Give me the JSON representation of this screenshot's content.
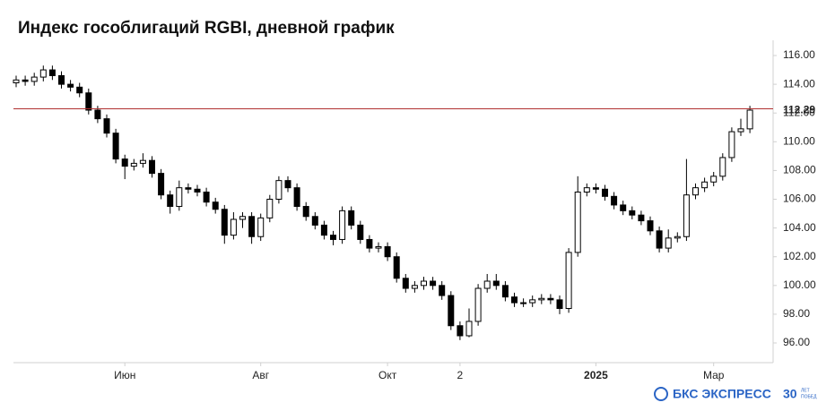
{
  "chart_data": {
    "type": "candlestick",
    "title": "Индекс гособлигаций RGBI, дневной график",
    "categories": [
      null,
      null,
      null,
      null,
      null,
      null,
      null,
      null,
      null,
      null,
      null,
      null,
      "Июн",
      null,
      null,
      null,
      null,
      null,
      null,
      null,
      null,
      null,
      null,
      null,
      null,
      null,
      null,
      "Авг",
      null,
      null,
      null,
      null,
      null,
      null,
      null,
      null,
      null,
      null,
      null,
      null,
      null,
      "Окт",
      null,
      null,
      null,
      null,
      null,
      null,
      null,
      "2",
      null,
      null,
      null,
      null,
      null,
      null,
      null,
      null,
      null,
      null,
      null,
      null,
      null,
      null,
      "2025",
      null,
      null,
      null,
      null,
      null,
      null,
      null,
      null,
      null,
      null,
      null,
      null,
      "Мар",
      null,
      null,
      null,
      null
    ],
    "open": [
      114.1,
      114.3,
      114.2,
      114.5,
      115.0,
      114.6,
      114.0,
      113.8,
      113.4,
      112.2,
      111.6,
      110.6,
      108.8,
      108.3,
      108.5,
      108.7,
      107.8,
      106.3,
      105.5,
      106.8,
      106.7,
      106.5,
      105.8,
      105.3,
      103.5,
      104.6,
      104.8,
      103.4,
      104.7,
      106.0,
      107.3,
      106.8,
      105.5,
      104.8,
      104.2,
      103.5,
      103.2,
      105.2,
      104.2,
      103.2,
      102.6,
      102.7,
      102.0,
      100.5,
      99.8,
      100.0,
      100.3,
      100.0,
      99.3,
      97.2,
      96.5,
      97.5,
      99.8,
      100.3,
      100.0,
      99.2,
      98.8,
      98.8,
      99.0,
      99.1,
      99.0,
      98.4,
      102.3,
      106.5,
      106.8,
      106.7,
      106.2,
      105.6,
      105.2,
      104.9,
      104.5,
      103.8,
      102.6,
      103.3,
      103.4,
      106.3,
      106.8,
      107.2,
      107.6,
      108.9,
      110.7,
      110.9
    ],
    "high": [
      114.6,
      114.6,
      114.8,
      115.3,
      115.3,
      114.9,
      114.3,
      114.1,
      113.7,
      112.5,
      111.9,
      110.9,
      109.1,
      108.8,
      109.2,
      109.0,
      108.1,
      106.6,
      107.3,
      107.1,
      107.0,
      106.8,
      106.1,
      105.6,
      105.1,
      105.1,
      105.1,
      105.0,
      106.3,
      107.6,
      107.6,
      107.1,
      105.8,
      105.1,
      104.5,
      103.8,
      105.5,
      105.5,
      104.5,
      103.5,
      103.0,
      103.0,
      102.3,
      100.8,
      100.3,
      100.6,
      100.6,
      100.3,
      99.6,
      97.5,
      98.4,
      100.1,
      100.8,
      100.8,
      100.3,
      99.5,
      99.1,
      99.3,
      99.4,
      99.4,
      99.3,
      102.6,
      107.6,
      107.1,
      107.1,
      107.0,
      106.5,
      105.9,
      105.5,
      105.2,
      104.8,
      104.1,
      103.9,
      103.7,
      108.8,
      107.1,
      107.5,
      107.9,
      109.2,
      111.0,
      111.6,
      112.5
    ],
    "low": [
      113.8,
      113.9,
      113.9,
      114.2,
      114.3,
      113.7,
      113.5,
      113.1,
      111.9,
      111.3,
      110.3,
      108.5,
      107.4,
      108.0,
      108.2,
      107.5,
      106.0,
      105.0,
      105.2,
      106.4,
      106.2,
      105.5,
      105.0,
      102.9,
      103.2,
      104.0,
      102.9,
      103.1,
      104.4,
      105.7,
      106.5,
      105.2,
      104.5,
      103.9,
      103.2,
      102.8,
      102.9,
      103.9,
      102.9,
      102.3,
      102.3,
      101.7,
      100.2,
      99.5,
      99.5,
      99.7,
      99.7,
      99.0,
      96.9,
      96.2,
      96.4,
      97.2,
      99.5,
      99.7,
      98.9,
      98.5,
      98.5,
      98.5,
      98.7,
      98.7,
      98.0,
      98.1,
      102.0,
      106.2,
      106.4,
      105.9,
      105.3,
      104.9,
      104.6,
      104.2,
      103.5,
      102.3,
      102.3,
      103.0,
      103.1,
      106.0,
      106.5,
      106.9,
      107.3,
      108.6,
      110.4,
      110.6
    ],
    "close": [
      114.3,
      114.2,
      114.5,
      115.0,
      114.6,
      114.0,
      113.8,
      113.4,
      112.2,
      111.6,
      110.6,
      108.8,
      108.3,
      108.5,
      108.7,
      107.8,
      106.3,
      105.5,
      106.8,
      106.7,
      106.5,
      105.8,
      105.3,
      103.5,
      104.6,
      104.8,
      103.4,
      104.7,
      106.0,
      107.3,
      106.8,
      105.5,
      104.8,
      104.2,
      103.5,
      103.2,
      105.2,
      104.2,
      103.2,
      102.6,
      102.7,
      102.0,
      100.5,
      99.8,
      100.0,
      100.3,
      100.0,
      99.3,
      97.2,
      96.5,
      97.5,
      99.8,
      100.3,
      100.0,
      99.2,
      98.8,
      98.8,
      99.0,
      99.1,
      99.0,
      98.4,
      102.3,
      106.5,
      106.8,
      106.7,
      106.2,
      105.6,
      105.2,
      104.9,
      104.5,
      103.8,
      102.6,
      103.3,
      103.4,
      106.3,
      106.8,
      107.2,
      107.6,
      108.9,
      110.7,
      110.9,
      112.2
    ],
    "up_color": "#ffffff",
    "down_color": "#000000",
    "color": "#000000",
    "ylim": [
      94.63,
      117.06
    ],
    "yticks": [
      {
        "value": 96,
        "label": "96.00"
      },
      {
        "value": 98,
        "label": "98.00"
      },
      {
        "value": 100,
        "label": "100.00"
      },
      {
        "value": 102,
        "label": "102.00"
      },
      {
        "value": 104,
        "label": "104.00"
      },
      {
        "value": 106,
        "label": "106.00"
      },
      {
        "value": 108,
        "label": "108.00"
      },
      {
        "value": 110,
        "label": "110.00"
      },
      {
        "value": 112,
        "label": "112.00"
      },
      {
        "value": 114,
        "label": "114.00"
      },
      {
        "value": 116,
        "label": "116.00"
      }
    ],
    "ref_line": {
      "value": 112.29,
      "color": "#b03030"
    },
    "bold_categories": [
      "2025"
    ]
  },
  "brand": {
    "name": "БКС ЭКСПРЕСС",
    "badge": "30",
    "badge_text": [
      "ЛЕТ",
      "ПОБЕД"
    ]
  }
}
